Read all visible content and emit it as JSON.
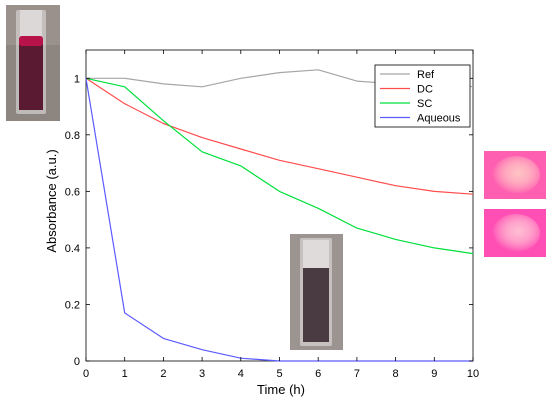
{
  "chart_data": {
    "type": "line",
    "xlabel": "Time (h)",
    "ylabel": "Absorbance (a.u.)",
    "xlim": [
      0,
      10
    ],
    "ylim": [
      0,
      1.1
    ],
    "xticks": [
      0,
      1,
      2,
      3,
      4,
      5,
      6,
      7,
      8,
      9,
      10
    ],
    "yticks": [
      0,
      0.2,
      0.4,
      0.6,
      0.8,
      1
    ],
    "ytick_labels": [
      "0",
      "0.2",
      "0.4",
      "0.6",
      "0.8",
      "1"
    ],
    "grid": false,
    "legend_position": "top-right",
    "x": [
      0,
      1,
      2,
      3,
      4,
      5,
      6,
      7,
      8,
      9,
      10
    ],
    "series": [
      {
        "name": "Ref",
        "color": "#a6a6a6",
        "values": [
          1.0,
          1.0,
          0.98,
          0.97,
          1.0,
          1.02,
          1.03,
          0.99,
          0.98,
          0.99,
          0.97
        ]
      },
      {
        "name": "DC",
        "color": "#ff4d4d",
        "values": [
          1.0,
          0.91,
          0.84,
          0.79,
          0.75,
          0.71,
          0.68,
          0.65,
          0.62,
          0.6,
          0.59
        ]
      },
      {
        "name": "SC",
        "color": "#00e03c",
        "values": [
          1.0,
          0.97,
          0.85,
          0.74,
          0.69,
          0.6,
          0.54,
          0.47,
          0.43,
          0.4,
          0.38
        ]
      },
      {
        "name": "Aqueous",
        "color": "#5b5bff",
        "values": [
          1.0,
          0.17,
          0.08,
          0.04,
          0.01,
          0.0,
          0.0,
          0.0,
          0.0,
          0.0,
          0.0
        ]
      }
    ]
  },
  "photos": {
    "cuvette_top_left": {
      "liquid_color": "#5a1a32",
      "cap_color": "#b8124a"
    },
    "cuvette_bottom": {
      "liquid_color": "#4a3a42"
    },
    "pink_swatch_top": {
      "color": "#ff5fb0",
      "spot": "#ffd6c8"
    },
    "pink_swatch_bottom": {
      "color": "#ff4fb4",
      "spot": "#ffd2d8"
    }
  }
}
